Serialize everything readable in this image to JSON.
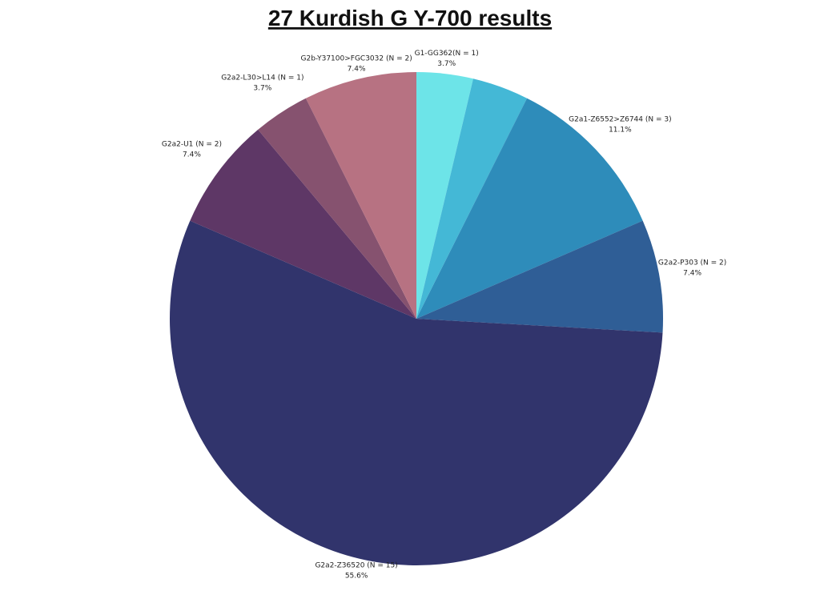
{
  "chart_data": {
    "type": "pie",
    "title": "27 Kurdish G Y-700 results",
    "categories": [
      "G1-GG362(N = 1)",
      null,
      "G2a1-Z6552>Z6744 (N = 3)",
      "G2a2-P303 (N = 2)",
      "G2a2-Z36520 (N = 15)",
      "G2a2-U1 (N = 2)",
      "G2a2-L30>L14 (N = 1)",
      "G2b-Y37100>FGC3032 (N = 2)"
    ],
    "values": [
      3.7,
      3.7,
      11.1,
      7.4,
      55.6,
      7.4,
      3.7,
      7.4
    ],
    "value_labels": [
      "3.7%",
      null,
      "11.1%",
      "7.4%",
      "55.6%",
      "7.4%",
      "3.7%",
      "7.4%"
    ],
    "colors": [
      "#6de4e8",
      "#44b8d6",
      "#2e8cba",
      "#2f5e96",
      "#31346c",
      "#5e3766",
      "#86526f",
      "#b77282"
    ]
  }
}
